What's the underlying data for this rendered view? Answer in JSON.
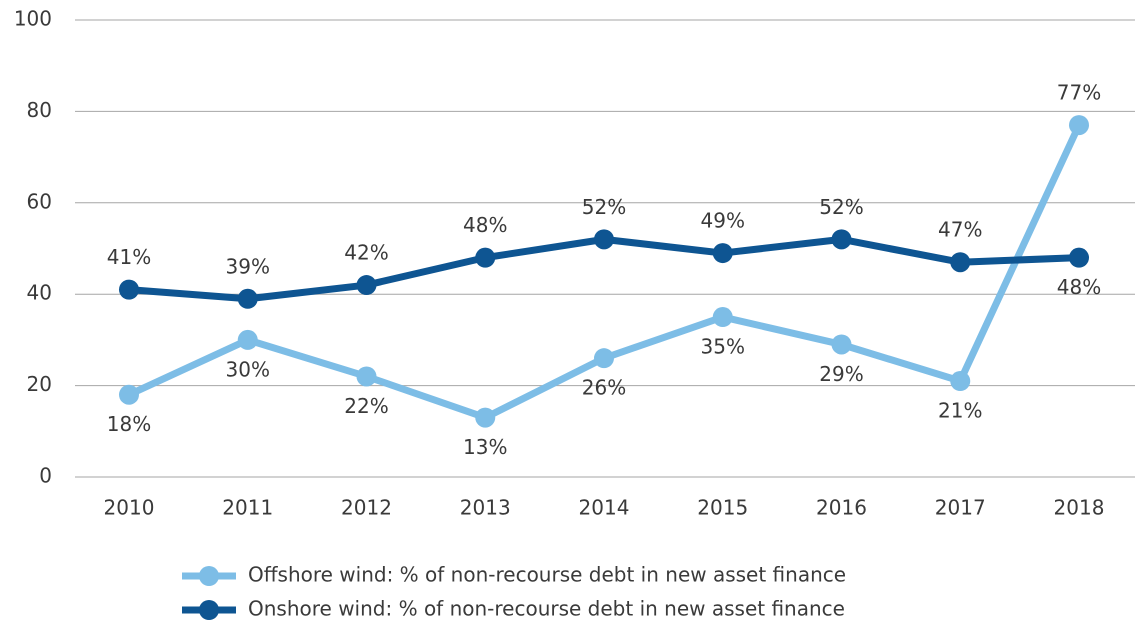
{
  "chart_data": {
    "type": "line",
    "categories": [
      "2010",
      "2011",
      "2012",
      "2013",
      "2014",
      "2015",
      "2016",
      "2017",
      "2018"
    ],
    "series": [
      {
        "name": "Offshore wind: % of non-recourse debt in new asset finance",
        "color": "#7dbde6",
        "values": [
          18,
          30,
          22,
          13,
          26,
          35,
          29,
          21,
          77
        ],
        "value_labels": [
          "18%",
          "30%",
          "22%",
          "13%",
          "26%",
          "35%",
          "29%",
          "21%",
          "77%"
        ]
      },
      {
        "name": "Onshore wind: % of non-recourse debt in new asset finance",
        "color": "#0e5592",
        "values": [
          41,
          39,
          42,
          48,
          52,
          49,
          52,
          47,
          48
        ],
        "value_labels": [
          "41%",
          "39%",
          "42%",
          "48%",
          "52%",
          "49%",
          "52%",
          "47%",
          "48%"
        ]
      }
    ],
    "ylim": [
      0,
      100
    ],
    "yticks": [
      0,
      20,
      40,
      60,
      80,
      100
    ],
    "grid": true,
    "legend": "bottom"
  }
}
